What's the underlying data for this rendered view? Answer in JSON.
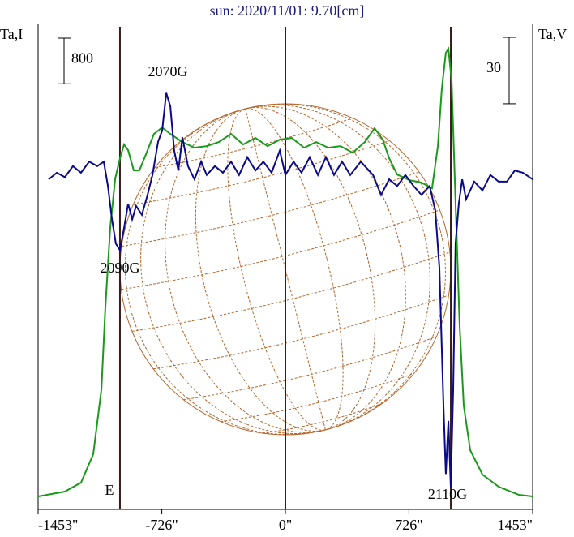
{
  "chart_data": {
    "type": "line",
    "title": "sun: 2020/11/01: 9.70[cm]",
    "y_axis_label": "Ta,I",
    "y2_axis_label": "Ta,V",
    "i_scale": 800,
    "v_scale": 30,
    "xlim": [
      -1453,
      1453
    ],
    "xticks": [
      {
        "value": -1453,
        "label": "-1453\""
      },
      {
        "value": -726,
        "label": "-726\""
      },
      {
        "value": 0,
        "label": "0\""
      },
      {
        "value": 726,
        "label": "726\""
      },
      {
        "value": 1453,
        "label": "1453\""
      }
    ],
    "ylim": [
      0,
      8500
    ],
    "y2lim": [
      -150,
      69
    ],
    "vlines": [
      -972,
      0,
      972
    ],
    "annotations": [
      "2070G",
      "2090G",
      "2110G",
      "E"
    ],
    "series": [
      {
        "name": "I",
        "color": "#1a9a1a",
        "x": [
          -1453,
          -1296,
          -1201,
          -1129,
          -1081,
          -1058,
          -1029,
          -1000,
          -972,
          -948,
          -924,
          -891,
          -858,
          -819,
          -772,
          -724,
          -676,
          -605,
          -534,
          -462,
          -391,
          -319,
          -248,
          -176,
          -105,
          -33,
          38,
          110,
          181,
          252,
          324,
          395,
          467,
          524,
          572,
          610,
          657,
          729,
          800,
          862,
          896,
          919,
          943,
          958,
          977,
          1000,
          1024,
          1048,
          1086,
          1158,
          1253,
          1372,
          1453
        ],
        "values": [
          227,
          313,
          469,
          966,
          2103,
          3524,
          4945,
          5798,
          6153,
          6395,
          6295,
          5940,
          5940,
          6224,
          6579,
          6693,
          6579,
          6437,
          6338,
          6366,
          6437,
          6579,
          6395,
          6508,
          6366,
          6480,
          6508,
          6338,
          6437,
          6338,
          6366,
          6252,
          6437,
          6679,
          6480,
          6153,
          5869,
          5769,
          5727,
          5627,
          6366,
          7361,
          8000,
          8071,
          7503,
          5371,
          3240,
          1819,
          1037,
          611,
          398,
          256,
          227
        ]
      },
      {
        "name": "V",
        "color": "#0a0a8a",
        "axis": "y2",
        "x": [
          -1391,
          -1343,
          -1296,
          -1248,
          -1201,
          -1153,
          -1105,
          -1067,
          -1043,
          -1019,
          -996,
          -972,
          -948,
          -924,
          -900,
          -877,
          -843,
          -810,
          -781,
          -748,
          -724,
          -700,
          -676,
          -653,
          -629,
          -605,
          -572,
          -534,
          -495,
          -462,
          -414,
          -367,
          -319,
          -272,
          -224,
          -176,
          -129,
          -81,
          -33,
          0,
          48,
          95,
          143,
          191,
          238,
          286,
          333,
          381,
          443,
          515,
          562,
          610,
          657,
          705,
          753,
          800,
          848,
          881,
          905,
          929,
          943,
          958,
          972,
          986,
          1000,
          1019,
          1039,
          1062,
          1110,
          1158,
          1205,
          1253,
          1301,
          1348,
          1396,
          1453
        ],
        "values": [
          -1,
          2,
          0,
          5,
          2,
          7,
          5,
          7,
          -4,
          -19,
          -30,
          -33,
          -23,
          -12,
          -19,
          -13,
          -17,
          -8,
          1,
          16,
          21,
          38,
          32,
          12,
          3,
          18,
          5,
          -1,
          7,
          1,
          5,
          2,
          7,
          1,
          9,
          3,
          7,
          2,
          12,
          1,
          7,
          2,
          9,
          1,
          9,
          1,
          7,
          1,
          7,
          1,
          -8,
          -1,
          -4,
          1,
          -4,
          -8,
          -4,
          -15,
          -41,
          -103,
          -134,
          -110,
          -140,
          -96,
          -30,
          -12,
          -1,
          -10,
          -2,
          -6,
          1,
          -2,
          -2,
          3,
          2,
          -1
        ]
      }
    ]
  }
}
